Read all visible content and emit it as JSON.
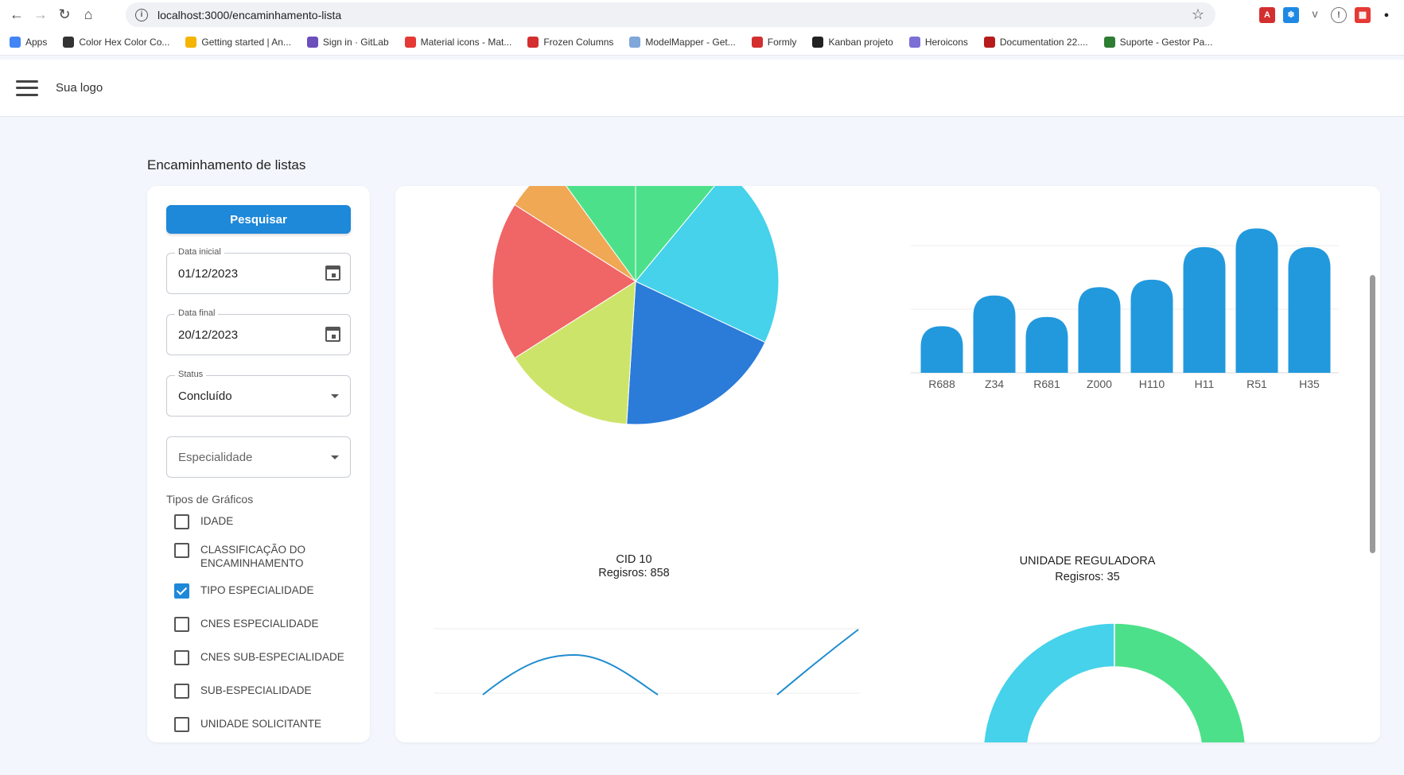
{
  "browser": {
    "url": "localhost:3000/encaminhamento-lista",
    "bookmarks": [
      {
        "label": "Apps",
        "color": "#4285f4"
      },
      {
        "label": "Color Hex Color Co...",
        "color": "#333333"
      },
      {
        "label": "Getting started | An...",
        "color": "#f4b400"
      },
      {
        "label": "Sign in · GitLab",
        "color": "#6b4fbb"
      },
      {
        "label": "Material icons - Mat...",
        "color": "#e53935"
      },
      {
        "label": "Frozen Columns",
        "color": "#d32f2f"
      },
      {
        "label": "ModelMapper - Get...",
        "color": "#7fa7d9"
      },
      {
        "label": "Formly",
        "color": "#d32f2f"
      },
      {
        "label": "Kanban projeto",
        "color": "#222222"
      },
      {
        "label": "Heroicons",
        "color": "#7c6fd6"
      },
      {
        "label": "Documentation 22....",
        "color": "#b71c1c"
      },
      {
        "label": "Suporte - Gestor Pa...",
        "color": "#2e7d32"
      }
    ]
  },
  "header": {
    "logo": "Sua logo"
  },
  "page": {
    "title": "Encaminhamento de listas"
  },
  "filters": {
    "search_label": "Pesquisar",
    "start_date": {
      "label": "Data inicial",
      "value": "01/12/2023"
    },
    "end_date": {
      "label": "Data final",
      "value": "20/12/2023"
    },
    "status": {
      "label": "Status",
      "value": "Concluído"
    },
    "specialty": {
      "placeholder": "Especialidade"
    },
    "chart_types_title": "Tipos de Gráficos",
    "chart_types": [
      {
        "label": "IDADE",
        "checked": false
      },
      {
        "label": "CLASSIFICAÇÃO DO ENCAMINHAMENTO",
        "checked": false
      },
      {
        "label": "TIPO ESPECIALIDADE",
        "checked": true
      },
      {
        "label": "CNES ESPECIALIDADE",
        "checked": false
      },
      {
        "label": "CNES SUB-ESPECIALIDADE",
        "checked": false
      },
      {
        "label": "SUB-ESPECIALIDADE",
        "checked": false
      },
      {
        "label": "UNIDADE SOLICITANTE",
        "checked": false
      }
    ]
  },
  "charts": {
    "cid": {
      "title": "CID 10",
      "subtitle": "Regisros: 858"
    },
    "unidade": {
      "title": "UNIDADE REGULADORA",
      "subtitle": "Regisros: 35"
    }
  },
  "chart_data": [
    {
      "type": "pie",
      "values": [
        11,
        21,
        19,
        15,
        18,
        6,
        10
      ],
      "colors": [
        "#4de08a",
        "#45d2ea",
        "#2b7bd9",
        "#cde46b",
        "#f06565",
        "#f0a855",
        "#4de08a"
      ]
    },
    {
      "type": "bar",
      "categories": [
        "R688",
        "Z34",
        "R681",
        "Z000",
        "H110",
        "H11",
        "R51",
        "H35"
      ],
      "values": [
        5,
        8.3,
        6,
        9.2,
        10,
        13.5,
        15.5,
        13.5
      ],
      "ylim": [
        0,
        17.5
      ],
      "color": "#2299dd"
    },
    {
      "type": "line",
      "title": "CID 10",
      "subtitle": "Regisros: 858",
      "color": "#1f8ccf"
    },
    {
      "type": "pie",
      "title": "UNIDADE REGULADORA",
      "subtitle": "Regisros: 35",
      "colors": [
        "#45d2ea",
        "#4de08a"
      ],
      "values": [
        50,
        50
      ]
    }
  ]
}
